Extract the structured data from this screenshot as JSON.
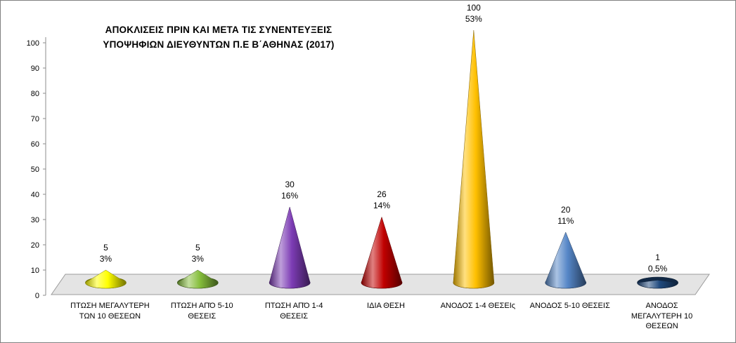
{
  "window": {
    "background": "#ffffff",
    "border_color": "#808080"
  },
  "chart_data": {
    "type": "bar",
    "variant": "3d-cone",
    "title": "ΑΠΟΚΛΙΣΕΙΣ ΠΡΙΝ ΚΑΙ ΜΕΤΑ ΤΙΣ ΣΥΝΕΝΤΕΥΞΕΙΣ ΥΠΟΨΗΦΙΩΝ ΔΙΕΥΘΥΝΤΩΝ Π.Ε Β΄ΑΘΗΝΑΣ (2017)",
    "title_lines": [
      "ΑΠΟΚΛΙΣΕΙΣ ΠΡΙΝ ΚΑΙ ΜΕΤΑ ΤΙΣ ΣΥΝΕΝΤΕΥΞΕΙΣ",
      "ΥΠΟΨΗΦΙΩΝ ΔΙΕΥΘΥΝΤΩΝ Π.Ε Β΄ΑΘΗΝΑΣ (2017)"
    ],
    "categories": [
      "ΠΤΩΣΗ ΜΕΓΑΛΥΤΕΡΗ ΤΩΝ 10 ΘΕΣΕΩΝ",
      "ΠΤΩΣΗ ΑΠΌ 5-10 ΘΕΣΕΙΣ",
      "ΠΤΩΣΗ ΑΠΌ 1-4 ΘΕΣΕΙΣ",
      "ΙΔΙΑ ΘΕΣΗ",
      "ΑΝΟΔΟΣ 1-4 ΘΕΣΕΙς",
      "ΑΝΟΔΟΣ 5-10 ΘΕΣΕΙΣ",
      "ΑΝΟΔΟΣ ΜΕΓΑΛΥΤΕΡΗ  10 ΘΕΣΕΩΝ"
    ],
    "values": [
      5,
      5,
      30,
      26,
      100,
      20,
      1
    ],
    "value_labels": [
      "5",
      "5",
      "30",
      "26",
      "100",
      "20",
      "1"
    ],
    "percent_labels": [
      "3%",
      "3%",
      "16%",
      "14%",
      "53%",
      "11%",
      "0,5%"
    ],
    "colors": [
      "#FFFF00",
      "#86BE3C",
      "#7D3CB5",
      "#C00000",
      "#FFC000",
      "#5586C7",
      "#1F497D"
    ],
    "ylim": [
      0,
      100
    ],
    "ytick_step": 10,
    "yticks": [
      0,
      10,
      20,
      30,
      40,
      50,
      60,
      70,
      80,
      90,
      100
    ],
    "grid": false,
    "legend": "none",
    "xlabel": "",
    "ylabel": "",
    "floor_color": "#E4E4E4"
  }
}
